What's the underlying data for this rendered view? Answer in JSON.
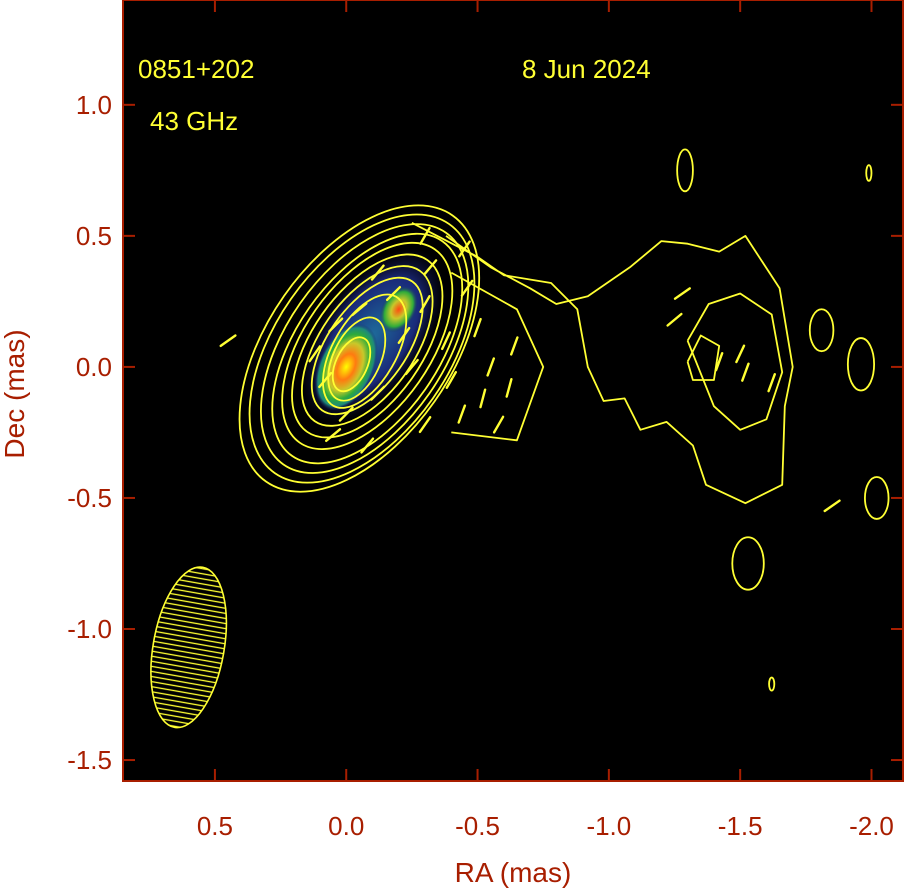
{
  "chart_data": {
    "type": "contour",
    "source_label": "0851+202",
    "frequency_label": "43 GHz",
    "date_label": "8 Jun 2024",
    "xlabel": "RA (mas)",
    "ylabel": "Dec (mas)",
    "xlim": [
      0.85,
      -2.12
    ],
    "ylim": [
      -1.58,
      1.4
    ],
    "x_reversed": true,
    "x_ticks": [
      {
        "value": 0.5,
        "label": "0.5"
      },
      {
        "value": 0.0,
        "label": "0.0"
      },
      {
        "value": -0.5,
        "label": "-0.5"
      },
      {
        "value": -1.0,
        "label": "-1.0"
      },
      {
        "value": -1.5,
        "label": "-1.5"
      },
      {
        "value": -2.0,
        "label": "-2.0"
      }
    ],
    "y_ticks": [
      {
        "value": 1.0,
        "label": "1.0"
      },
      {
        "value": 0.5,
        "label": "0.5"
      },
      {
        "value": 0.0,
        "label": "0.0"
      },
      {
        "value": -0.5,
        "label": "-0.5"
      },
      {
        "value": -1.0,
        "label": "-1.0"
      },
      {
        "value": -1.5,
        "label": "-1.5"
      }
    ],
    "colors": {
      "background": "#000000",
      "contour": "#ffff33",
      "axis": "#a81e00",
      "frame": "#a81e00"
    },
    "color_map": [
      "#1a1a66",
      "#1f4fa0",
      "#1e8a7a",
      "#2eab3a",
      "#a8c82a",
      "#e8d020",
      "#ff4a10",
      "#ffff00"
    ],
    "beam": {
      "x": 0.6,
      "y": -1.07,
      "bmaj": 0.31,
      "bmin": 0.135,
      "pa_deg": 10
    },
    "jet_components": [
      {
        "name": "core",
        "x": 0.0,
        "y": 0.0,
        "rx": 0.065,
        "ry": 0.11,
        "pa_deg": 25
      },
      {
        "name": "knot",
        "x": -0.2,
        "y": 0.22,
        "rx": 0.04,
        "ry": 0.06,
        "pa_deg": 30
      }
    ],
    "contours_main": [
      {
        "cx": -0.05,
        "cy": 0.07,
        "rx": 0.35,
        "ry": 0.62,
        "pa_deg": 35
      },
      {
        "cx": -0.06,
        "cy": 0.07,
        "rx": 0.33,
        "ry": 0.58,
        "pa_deg": 35
      },
      {
        "cx": -0.07,
        "cy": 0.07,
        "rx": 0.3,
        "ry": 0.54,
        "pa_deg": 35
      },
      {
        "cx": -0.08,
        "cy": 0.07,
        "rx": 0.27,
        "ry": 0.5,
        "pa_deg": 35
      },
      {
        "cx": -0.08,
        "cy": 0.08,
        "rx": 0.24,
        "ry": 0.45,
        "pa_deg": 35
      },
      {
        "cx": -0.08,
        "cy": 0.08,
        "rx": 0.21,
        "ry": 0.4,
        "pa_deg": 35
      },
      {
        "cx": -0.08,
        "cy": 0.08,
        "rx": 0.18,
        "ry": 0.35,
        "pa_deg": 35
      },
      {
        "cx": -0.08,
        "cy": 0.08,
        "rx": 0.15,
        "ry": 0.3,
        "pa_deg": 35
      },
      {
        "cx": -0.07,
        "cy": 0.06,
        "rx": 0.12,
        "ry": 0.24,
        "pa_deg": 30
      },
      {
        "cx": -0.04,
        "cy": 0.03,
        "rx": 0.09,
        "ry": 0.17,
        "pa_deg": 25
      },
      {
        "cx": -0.02,
        "cy": 0.01,
        "rx": 0.06,
        "ry": 0.11,
        "pa_deg": 25
      }
    ],
    "contours_extended": [
      [
        [
          -0.25,
          0.55
        ],
        [
          -0.5,
          0.42
        ],
        [
          -0.6,
          0.35
        ],
        [
          -0.78,
          0.32
        ],
        [
          -0.88,
          0.22
        ],
        [
          -0.92,
          0.0
        ],
        [
          -0.98,
          -0.13
        ],
        [
          -1.06,
          -0.12
        ],
        [
          -1.12,
          -0.24
        ],
        [
          -1.22,
          -0.21
        ],
        [
          -1.32,
          -0.3
        ],
        [
          -1.37,
          -0.45
        ],
        [
          -1.52,
          -0.52
        ],
        [
          -1.66,
          -0.45
        ],
        [
          -1.67,
          -0.15
        ],
        [
          -1.7,
          0.0
        ],
        [
          -1.65,
          0.3
        ],
        [
          -1.52,
          0.5
        ],
        [
          -1.42,
          0.44
        ],
        [
          -1.3,
          0.47
        ],
        [
          -1.2,
          0.48
        ],
        [
          -1.08,
          0.38
        ],
        [
          -0.92,
          0.27
        ],
        [
          -0.8,
          0.24
        ],
        [
          -0.7,
          0.3
        ],
        [
          -0.55,
          0.38
        ],
        [
          -0.38,
          0.5
        ]
      ],
      [
        [
          -0.4,
          0.36
        ],
        [
          -0.65,
          0.22
        ],
        [
          -0.75,
          0.0
        ],
        [
          -0.65,
          -0.28
        ],
        [
          -0.4,
          -0.25
        ]
      ],
      [
        [
          -1.3,
          0.1
        ],
        [
          -1.38,
          0.24
        ],
        [
          -1.5,
          0.28
        ],
        [
          -1.62,
          0.2
        ],
        [
          -1.66,
          -0.02
        ],
        [
          -1.6,
          -0.2
        ],
        [
          -1.5,
          -0.24
        ],
        [
          -1.4,
          -0.15
        ],
        [
          -1.3,
          0.1
        ]
      ],
      [
        [
          -1.3,
          0.02
        ],
        [
          -1.35,
          0.12
        ],
        [
          -1.42,
          0.08
        ],
        [
          -1.4,
          -0.05
        ],
        [
          -1.32,
          -0.05
        ],
        [
          -1.3,
          0.02
        ]
      ]
    ],
    "isolated_contours": [
      {
        "x": -1.29,
        "y": 0.75,
        "rx": 0.03,
        "ry": 0.08
      },
      {
        "x": -1.99,
        "y": 0.74,
        "rx": 0.01,
        "ry": 0.03
      },
      {
        "x": -1.81,
        "y": 0.14,
        "rx": 0.045,
        "ry": 0.08
      },
      {
        "x": -1.96,
        "y": 0.01,
        "rx": 0.05,
        "ry": 0.1
      },
      {
        "x": -2.02,
        "y": -0.5,
        "rx": 0.045,
        "ry": 0.08
      },
      {
        "x": -1.53,
        "y": -0.75,
        "rx": 0.06,
        "ry": 0.1
      },
      {
        "x": -1.62,
        "y": -1.21,
        "rx": 0.01,
        "ry": 0.025
      }
    ],
    "evpa_ticks": [
      [
        0.45,
        0.1,
        35
      ],
      [
        0.12,
        0.05,
        55
      ],
      [
        0.08,
        -0.05,
        50
      ],
      [
        0.04,
        0.16,
        45
      ],
      [
        -0.05,
        0.22,
        40
      ],
      [
        -0.12,
        0.36,
        50
      ],
      [
        -0.18,
        0.28,
        45
      ],
      [
        -0.22,
        0.12,
        55
      ],
      [
        -0.25,
        0.0,
        50
      ],
      [
        -0.3,
        0.24,
        60
      ],
      [
        -0.32,
        0.38,
        50
      ],
      [
        -0.38,
        0.1,
        65
      ],
      [
        -0.4,
        -0.05,
        60
      ],
      [
        -0.44,
        -0.18,
        70
      ],
      [
        -0.46,
        0.3,
        55
      ],
      [
        -0.5,
        0.15,
        70
      ],
      [
        -0.52,
        -0.12,
        75
      ],
      [
        -0.55,
        0.0,
        70
      ],
      [
        -0.58,
        -0.22,
        60
      ],
      [
        -0.62,
        -0.08,
        75
      ],
      [
        -0.64,
        0.08,
        70
      ],
      [
        0.0,
        -0.18,
        45
      ],
      [
        0.05,
        -0.26,
        40
      ],
      [
        -0.08,
        -0.3,
        50
      ],
      [
        -0.12,
        -0.1,
        45
      ],
      [
        -0.3,
        -0.22,
        55
      ],
      [
        -1.25,
        0.18,
        40
      ],
      [
        -1.28,
        0.28,
        35
      ],
      [
        -1.42,
        0.02,
        70
      ],
      [
        -1.5,
        0.05,
        65
      ],
      [
        -1.52,
        -0.02,
        70
      ],
      [
        -1.62,
        -0.06,
        70
      ],
      [
        -1.85,
        -0.53,
        35
      ],
      [
        -0.3,
        0.5,
        60
      ],
      [
        -0.45,
        0.45,
        55
      ]
    ]
  }
}
